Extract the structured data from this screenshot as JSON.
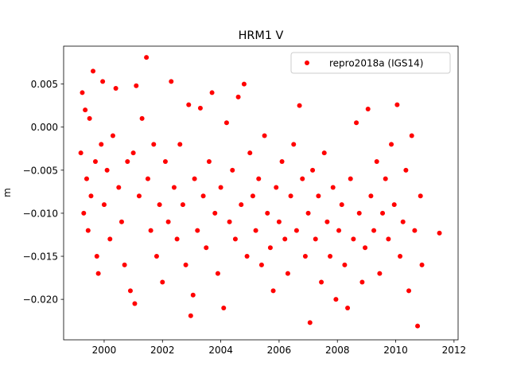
{
  "chart_data": {
    "type": "scatter",
    "title": "HRM1 V",
    "y_label": "m",
    "legend_loc": "upper right",
    "xlim": [
      1998.61,
      2012.14
    ],
    "ylim": [
      -0.0247,
      0.0094
    ],
    "xticks": [
      2000,
      2002,
      2004,
      2006,
      2008,
      2010,
      2012
    ],
    "yticks": [
      {
        "value": -0.02,
        "label": "−0.020"
      },
      {
        "value": -0.015,
        "label": "−0.015"
      },
      {
        "value": -0.01,
        "label": "−0.010"
      },
      {
        "value": -0.005,
        "label": "−0.005"
      },
      {
        "value": 0,
        "label": "0.000"
      },
      {
        "value": 0.005,
        "label": "0.005"
      }
    ],
    "series": [
      {
        "name": "repro2018a (IGS14)",
        "color": "#ff0000",
        "x": [
          1999.2,
          1999.25,
          1999.3,
          1999.35,
          1999.4,
          1999.45,
          1999.5,
          1999.55,
          1999.62,
          1999.7,
          1999.75,
          1999.8,
          1999.9,
          1999.95,
          2000.0,
          2000.1,
          2000.2,
          2000.3,
          2000.4,
          2000.5,
          2000.6,
          2000.7,
          2000.8,
          2000.9,
          2001.0,
          2001.05,
          2001.1,
          2001.2,
          2001.3,
          2001.45,
          2001.5,
          2001.6,
          2001.7,
          2001.8,
          2001.9,
          2002.0,
          2002.1,
          2002.2,
          2002.3,
          2002.4,
          2002.5,
          2002.6,
          2002.7,
          2002.8,
          2002.9,
          2002.97,
          2003.05,
          2003.1,
          2003.2,
          2003.3,
          2003.4,
          2003.5,
          2003.6,
          2003.7,
          2003.8,
          2003.9,
          2004.0,
          2004.1,
          2004.2,
          2004.3,
          2004.4,
          2004.5,
          2004.6,
          2004.7,
          2004.8,
          2004.9,
          2005.0,
          2005.1,
          2005.2,
          2005.3,
          2005.4,
          2005.5,
          2005.6,
          2005.7,
          2005.8,
          2005.9,
          2006.0,
          2006.1,
          2006.2,
          2006.3,
          2006.4,
          2006.5,
          2006.6,
          2006.7,
          2006.8,
          2006.9,
          2007.0,
          2007.06,
          2007.15,
          2007.25,
          2007.35,
          2007.45,
          2007.55,
          2007.65,
          2007.75,
          2007.85,
          2007.95,
          2008.05,
          2008.15,
          2008.25,
          2008.35,
          2008.45,
          2008.55,
          2008.65,
          2008.75,
          2008.85,
          2008.95,
          2009.05,
          2009.15,
          2009.25,
          2009.35,
          2009.45,
          2009.55,
          2009.65,
          2009.75,
          2009.85,
          2009.95,
          2010.05,
          2010.15,
          2010.25,
          2010.35,
          2010.45,
          2010.55,
          2010.65,
          2010.75,
          2010.85,
          2010.9,
          2011.5
        ],
        "values": [
          -0.003,
          0.004,
          -0.01,
          0.002,
          -0.006,
          -0.012,
          0.001,
          -0.008,
          0.0065,
          -0.004,
          -0.015,
          -0.017,
          -0.002,
          0.0053,
          -0.009,
          -0.005,
          -0.013,
          -0.001,
          0.0045,
          -0.007,
          -0.011,
          -0.016,
          -0.004,
          -0.019,
          -0.003,
          -0.0205,
          0.0048,
          -0.008,
          0.001,
          0.0081,
          -0.006,
          -0.012,
          -0.002,
          -0.015,
          -0.009,
          -0.018,
          -0.004,
          -0.011,
          0.0053,
          -0.007,
          -0.013,
          -0.002,
          -0.009,
          -0.016,
          0.0026,
          -0.0219,
          -0.0195,
          -0.006,
          -0.012,
          0.0022,
          -0.008,
          -0.014,
          -0.004,
          0.004,
          -0.01,
          -0.017,
          -0.007,
          -0.021,
          0.0005,
          -0.011,
          -0.005,
          -0.013,
          0.0035,
          -0.009,
          0.005,
          -0.015,
          -0.003,
          -0.008,
          -0.012,
          -0.006,
          -0.016,
          -0.001,
          -0.01,
          -0.014,
          -0.019,
          -0.007,
          -0.011,
          -0.004,
          -0.013,
          -0.017,
          -0.008,
          -0.002,
          -0.012,
          0.0025,
          -0.006,
          -0.015,
          -0.01,
          -0.0227,
          -0.005,
          -0.013,
          -0.008,
          -0.018,
          -0.003,
          -0.011,
          -0.015,
          -0.007,
          -0.02,
          -0.012,
          -0.009,
          -0.016,
          -0.021,
          -0.006,
          -0.013,
          0.0005,
          -0.01,
          -0.018,
          -0.014,
          0.0021,
          -0.008,
          -0.012,
          -0.004,
          -0.017,
          -0.01,
          -0.006,
          -0.013,
          -0.002,
          -0.009,
          0.0026,
          -0.015,
          -0.011,
          -0.005,
          -0.019,
          -0.001,
          -0.012,
          -0.0231,
          -0.008,
          -0.016,
          -0.0123
        ]
      }
    ]
  }
}
